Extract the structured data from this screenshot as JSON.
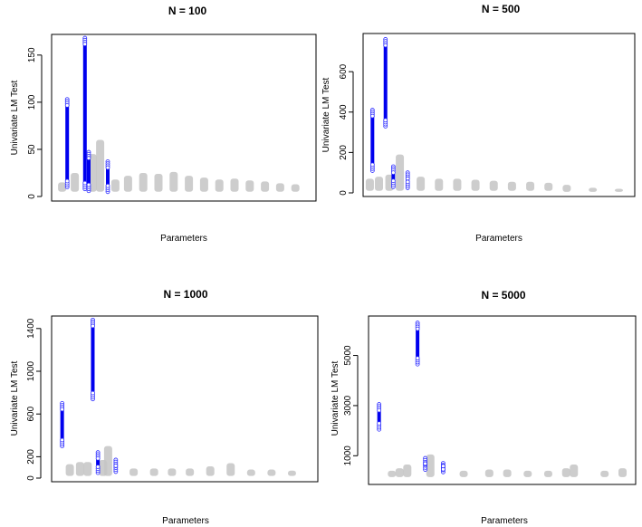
{
  "colors": {
    "highlight": "#0000ee",
    "highlight_outline": "#2a2aff",
    "background_points": "#c4c4c4",
    "frame": "#000000"
  },
  "chart_data": [
    {
      "type": "scatter",
      "title": "N = 100",
      "xlabel": "Parameters",
      "ylabel": "Univariate LM Test",
      "yticks": [
        0,
        50,
        100,
        150
      ],
      "ylim": [
        0,
        170
      ],
      "xlim": [
        0,
        100
      ],
      "highlight_series": [
        {
          "x": 4,
          "min": 10,
          "max": 103
        },
        {
          "x": 11,
          "min": 8,
          "max": 168
        },
        {
          "x": 12.5,
          "min": 6,
          "max": 47
        },
        {
          "x": 20,
          "min": 5,
          "max": 37
        }
      ],
      "background_series": [
        {
          "x": 2,
          "min": 5,
          "max": 15
        },
        {
          "x": 7,
          "min": 5,
          "max": 25
        },
        {
          "x": 14,
          "min": 5,
          "max": 45
        },
        {
          "x": 17,
          "min": 5,
          "max": 60
        },
        {
          "x": 23,
          "min": 5,
          "max": 18
        },
        {
          "x": 28,
          "min": 5,
          "max": 22
        },
        {
          "x": 34,
          "min": 5,
          "max": 25
        },
        {
          "x": 40,
          "min": 5,
          "max": 24
        },
        {
          "x": 46,
          "min": 5,
          "max": 26
        },
        {
          "x": 52,
          "min": 5,
          "max": 22
        },
        {
          "x": 58,
          "min": 5,
          "max": 20
        },
        {
          "x": 64,
          "min": 5,
          "max": 18
        },
        {
          "x": 70,
          "min": 5,
          "max": 19
        },
        {
          "x": 76,
          "min": 5,
          "max": 17
        },
        {
          "x": 82,
          "min": 5,
          "max": 16
        },
        {
          "x": 88,
          "min": 5,
          "max": 14
        },
        {
          "x": 94,
          "min": 5,
          "max": 13
        }
      ]
    },
    {
      "type": "scatter",
      "title": "N = 500",
      "xlabel": "Parameters",
      "ylabel": "Univariate LM Test",
      "yticks": [
        0,
        200,
        400,
        600
      ],
      "ylim": [
        0,
        780
      ],
      "xlim": [
        0,
        100
      ],
      "highlight_series": [
        {
          "x": 1.5,
          "min": 110,
          "max": 410
        },
        {
          "x": 6.5,
          "min": 330,
          "max": 760
        },
        {
          "x": 9.5,
          "min": 30,
          "max": 130
        },
        {
          "x": 15,
          "min": 25,
          "max": 100
        }
      ],
      "background_series": [
        {
          "x": 0.5,
          "min": 10,
          "max": 70
        },
        {
          "x": 4,
          "min": 10,
          "max": 80
        },
        {
          "x": 8,
          "min": 10,
          "max": 90
        },
        {
          "x": 12,
          "min": 10,
          "max": 190
        },
        {
          "x": 20,
          "min": 10,
          "max": 80
        },
        {
          "x": 27,
          "min": 10,
          "max": 70
        },
        {
          "x": 34,
          "min": 10,
          "max": 70
        },
        {
          "x": 41,
          "min": 10,
          "max": 65
        },
        {
          "x": 48,
          "min": 10,
          "max": 60
        },
        {
          "x": 55,
          "min": 10,
          "max": 55
        },
        {
          "x": 62,
          "min": 10,
          "max": 55
        },
        {
          "x": 69,
          "min": 10,
          "max": 50
        },
        {
          "x": 76,
          "min": 5,
          "max": 40
        },
        {
          "x": 86,
          "min": 5,
          "max": 25
        },
        {
          "x": 96,
          "min": 5,
          "max": 20
        }
      ]
    },
    {
      "type": "scatter",
      "title": "N = 1000",
      "xlabel": "Parameters",
      "ylabel": "Univariate LM Test",
      "yticks": [
        0,
        200,
        600,
        1000,
        1400
      ],
      "ylim": [
        0,
        1500
      ],
      "xlim": [
        0,
        100
      ],
      "highlight_series": [
        {
          "x": 2,
          "min": 300,
          "max": 700
        },
        {
          "x": 14,
          "min": 740,
          "max": 1480
        },
        {
          "x": 16,
          "min": 50,
          "max": 240
        },
        {
          "x": 23,
          "min": 60,
          "max": 170
        }
      ],
      "background_series": [
        {
          "x": 5,
          "min": 20,
          "max": 130
        },
        {
          "x": 9,
          "min": 20,
          "max": 150
        },
        {
          "x": 12,
          "min": 20,
          "max": 150
        },
        {
          "x": 18,
          "min": 20,
          "max": 170
        },
        {
          "x": 20,
          "min": 20,
          "max": 300
        },
        {
          "x": 30,
          "min": 20,
          "max": 90
        },
        {
          "x": 38,
          "min": 20,
          "max": 90
        },
        {
          "x": 45,
          "min": 20,
          "max": 90
        },
        {
          "x": 52,
          "min": 20,
          "max": 90
        },
        {
          "x": 60,
          "min": 20,
          "max": 110
        },
        {
          "x": 68,
          "min": 20,
          "max": 140
        },
        {
          "x": 76,
          "min": 20,
          "max": 80
        },
        {
          "x": 84,
          "min": 20,
          "max": 80
        },
        {
          "x": 92,
          "min": 20,
          "max": 70
        }
      ]
    },
    {
      "type": "scatter",
      "title": "N = 5000",
      "xlabel": "Parameters",
      "ylabel": "Univariate LM Test",
      "yticks": [
        1000,
        3000,
        5000
      ],
      "ylim": [
        0,
        6500
      ],
      "xlim": [
        0,
        100
      ],
      "highlight_series": [
        {
          "x": 2,
          "min": 2050,
          "max": 3050
        },
        {
          "x": 17,
          "min": 4650,
          "max": 6300
        },
        {
          "x": 20,
          "min": 450,
          "max": 900
        },
        {
          "x": 27,
          "min": 350,
          "max": 700
        }
      ],
      "background_series": [
        {
          "x": 7,
          "min": 150,
          "max": 400
        },
        {
          "x": 10,
          "min": 150,
          "max": 500
        },
        {
          "x": 13,
          "min": 150,
          "max": 650
        },
        {
          "x": 22,
          "min": 150,
          "max": 1050
        },
        {
          "x": 35,
          "min": 150,
          "max": 400
        },
        {
          "x": 45,
          "min": 150,
          "max": 450
        },
        {
          "x": 52,
          "min": 150,
          "max": 450
        },
        {
          "x": 60,
          "min": 150,
          "max": 400
        },
        {
          "x": 68,
          "min": 150,
          "max": 400
        },
        {
          "x": 75,
          "min": 150,
          "max": 500
        },
        {
          "x": 78,
          "min": 150,
          "max": 650
        },
        {
          "x": 90,
          "min": 150,
          "max": 400
        },
        {
          "x": 97,
          "min": 150,
          "max": 500
        }
      ]
    }
  ]
}
